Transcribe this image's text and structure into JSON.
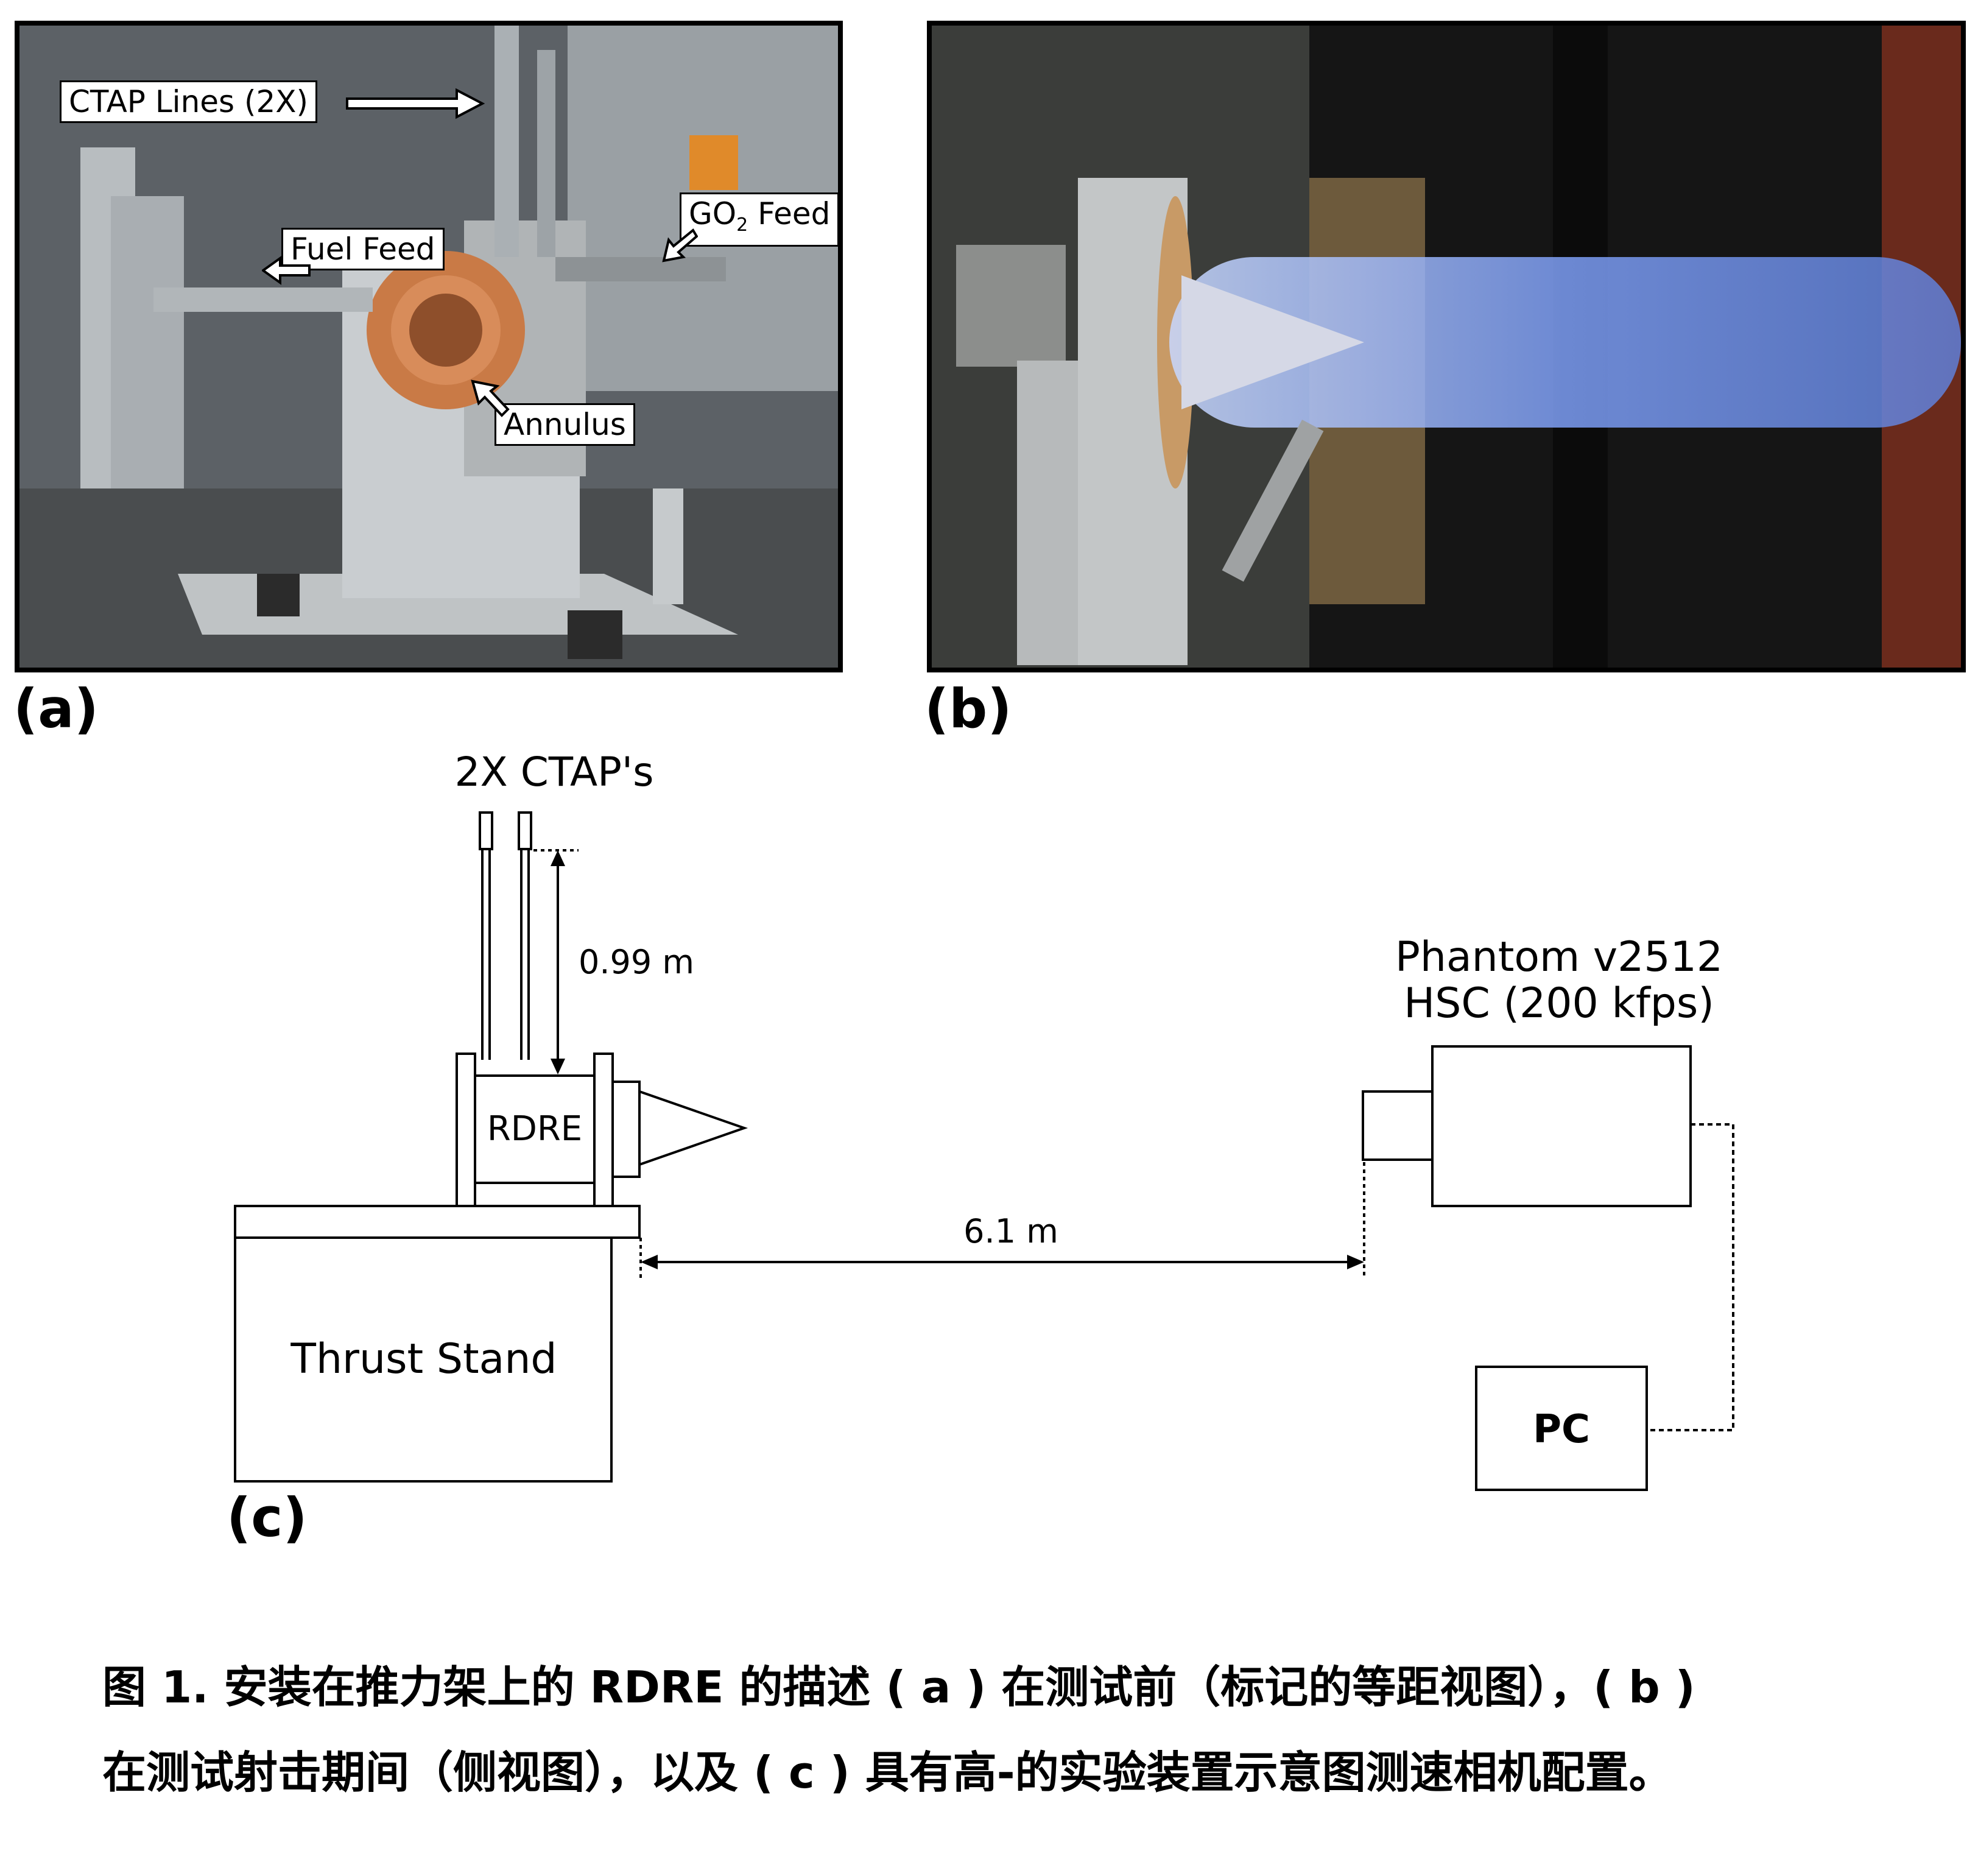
{
  "panels": {
    "a": {
      "label": "(a)",
      "callouts": {
        "ctap_lines": "CTAP Lines (2X)",
        "fuel_feed": "Fuel Feed",
        "go2_feed_prefix": "GO",
        "go2_feed_sub": "2",
        "go2_feed_suffix": " Feed",
        "annulus": "Annulus"
      }
    },
    "b": {
      "label": "(b)"
    },
    "c": {
      "label": "(c)",
      "ctap_label": "2X CTAP's",
      "height_dim": "0.99 m",
      "rdre_label": "RDRE",
      "thrust_stand_label": "Thrust Stand",
      "distance_dim": "6.1 m",
      "camera_label_line1": "Phantom v2512",
      "camera_label_line2": "HSC (200 kfps)",
      "pc_label": "PC"
    }
  },
  "caption": {
    "line1": "图 1. 安装在推力架上的 RDRE 的描述 ( a ) 在测试前（标记的等距视图），( b )",
    "line2": "在测试射击期间（侧视图），以及 ( c ) 具有高-的实验装置示意图测速相机配置。"
  }
}
